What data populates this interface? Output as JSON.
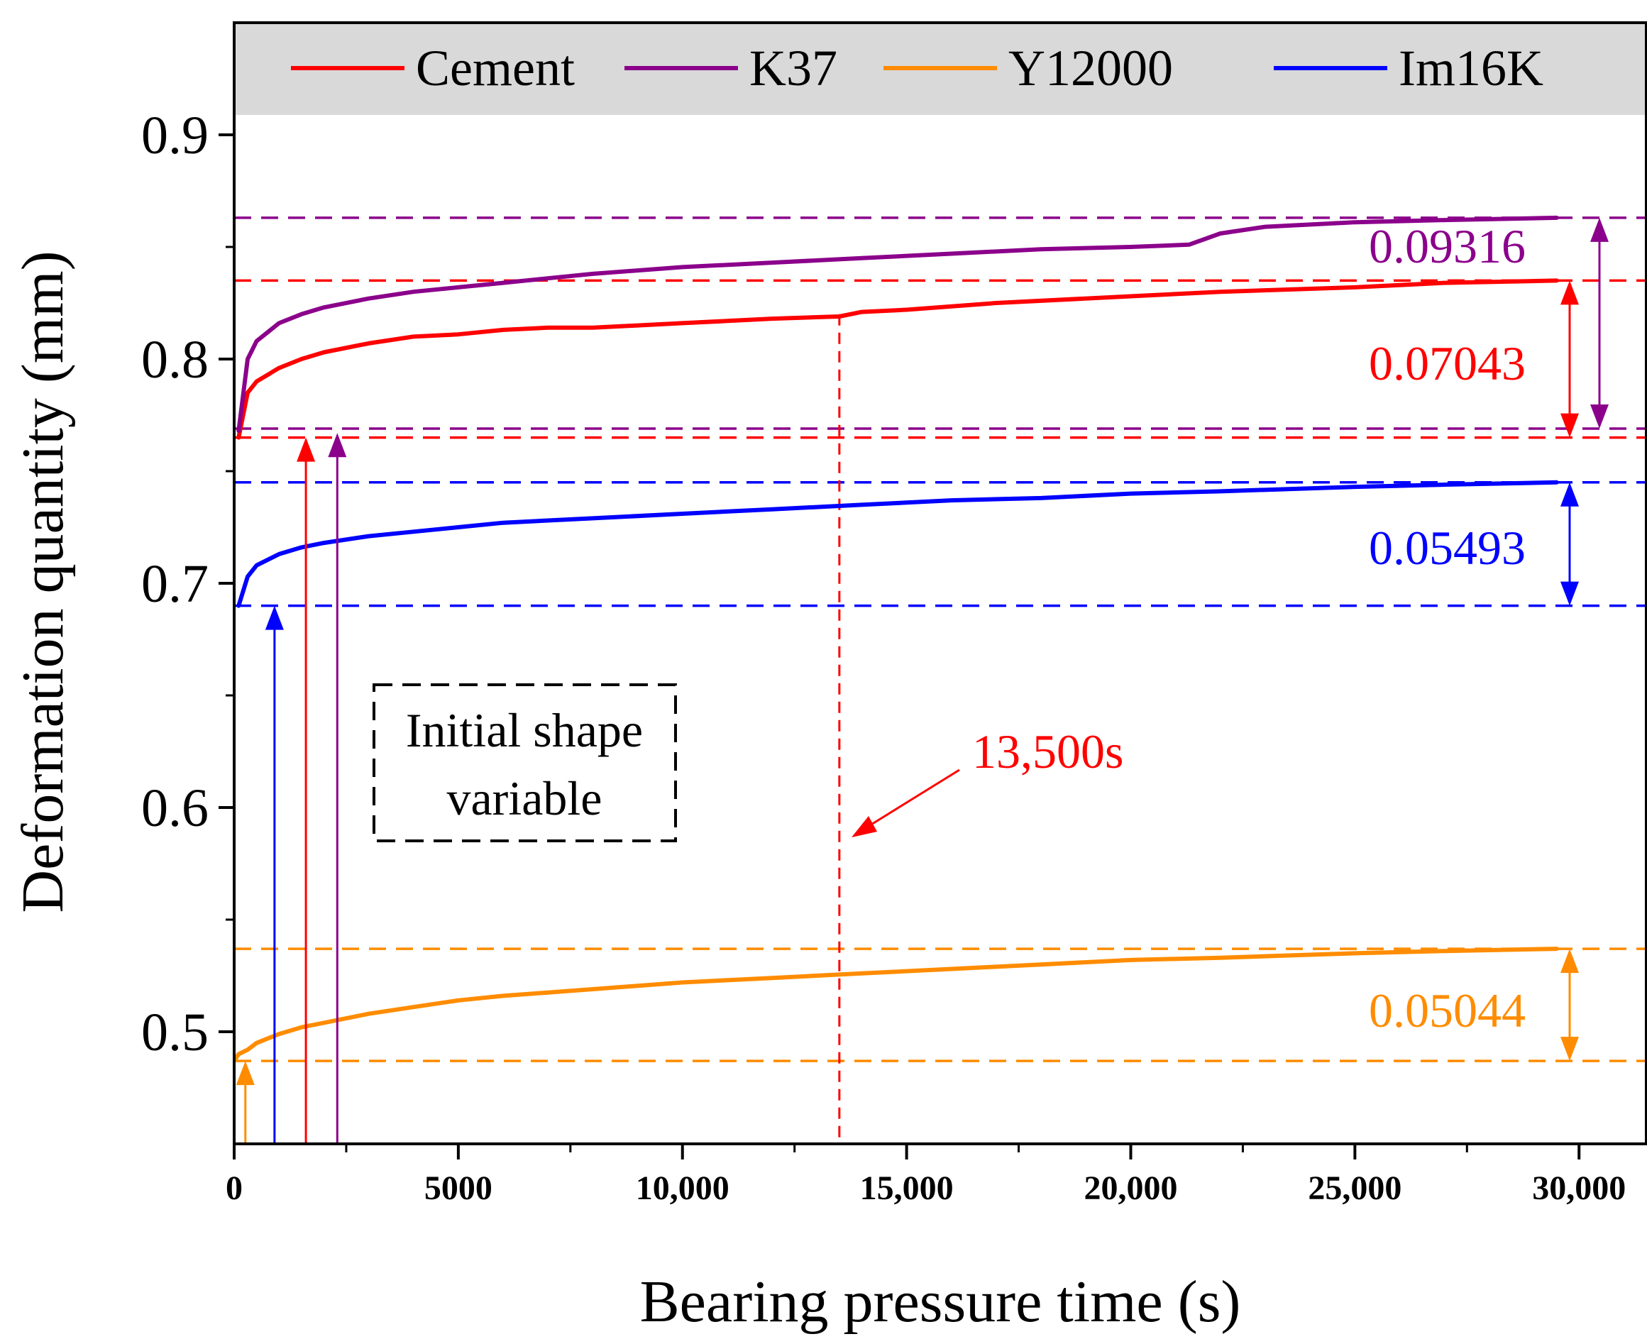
{
  "chart_data": {
    "type": "line",
    "title": "",
    "xlabel": "Bearing pressure time (s)",
    "ylabel": "Deformation quantity (mm)",
    "xlim": [
      0,
      31500
    ],
    "ylim": [
      0.45,
      0.95
    ],
    "x_ticks": [
      0,
      5000,
      10000,
      15000,
      20000,
      25000,
      30000
    ],
    "x_tick_labels": [
      "0",
      "5000",
      "10,000",
      "15,000",
      "20,000",
      "25,000",
      "30,000"
    ],
    "y_ticks": [
      0.5,
      0.6,
      0.7,
      0.8,
      0.9
    ],
    "y_tick_labels": [
      "0.5",
      "0.6",
      "0.7",
      "0.8",
      "0.9"
    ],
    "grid": false,
    "legend_position": "top",
    "series": [
      {
        "name": "Cement",
        "color": "#ff0000",
        "x": [
          100,
          300,
          500,
          1000,
          1500,
          2000,
          3000,
          4000,
          5000,
          6000,
          7000,
          8000,
          9000,
          10000,
          11000,
          12000,
          13500,
          14000,
          15000,
          17000,
          20000,
          22000,
          25000,
          27000,
          29500
        ],
        "y": [
          0.765,
          0.785,
          0.79,
          0.796,
          0.8,
          0.803,
          0.807,
          0.81,
          0.811,
          0.813,
          0.814,
          0.814,
          0.815,
          0.816,
          0.817,
          0.818,
          0.819,
          0.821,
          0.822,
          0.825,
          0.828,
          0.83,
          0.832,
          0.834,
          0.835
        ]
      },
      {
        "name": "K37",
        "color": "#8b008b",
        "x": [
          100,
          300,
          500,
          1000,
          1500,
          2000,
          3000,
          4000,
          5000,
          6000,
          7000,
          8000,
          10000,
          12000,
          14000,
          16000,
          18000,
          20000,
          21300,
          22000,
          23000,
          25000,
          27000,
          29500
        ],
        "y": [
          0.768,
          0.8,
          0.808,
          0.816,
          0.82,
          0.823,
          0.827,
          0.83,
          0.832,
          0.834,
          0.836,
          0.838,
          0.841,
          0.843,
          0.845,
          0.847,
          0.849,
          0.85,
          0.851,
          0.856,
          0.859,
          0.861,
          0.862,
          0.863
        ]
      },
      {
        "name": "Y12000",
        "color": "#ff8c00",
        "x": [
          0,
          100,
          300,
          500,
          1000,
          1500,
          2000,
          3000,
          4000,
          5000,
          6000,
          8000,
          10000,
          12000,
          14000,
          16000,
          18000,
          20000,
          22000,
          25000,
          27000,
          29500
        ],
        "y": [
          0.487,
          0.49,
          0.492,
          0.495,
          0.499,
          0.502,
          0.504,
          0.508,
          0.511,
          0.514,
          0.516,
          0.519,
          0.522,
          0.524,
          0.526,
          0.528,
          0.53,
          0.532,
          0.533,
          0.535,
          0.536,
          0.537
        ]
      },
      {
        "name": "Im16K",
        "color": "#0000ff",
        "x": [
          100,
          300,
          500,
          1000,
          1500,
          2000,
          3000,
          4000,
          5000,
          6000,
          8000,
          10000,
          12000,
          14000,
          16000,
          18000,
          20000,
          22000,
          25000,
          27000,
          29500
        ],
        "y": [
          0.69,
          0.703,
          0.708,
          0.713,
          0.716,
          0.718,
          0.721,
          0.723,
          0.725,
          0.727,
          0.729,
          0.731,
          0.733,
          0.735,
          0.737,
          0.738,
          0.74,
          0.741,
          0.743,
          0.744,
          0.745
        ]
      }
    ],
    "reference_lines": [
      {
        "series": "K37",
        "y": 0.863,
        "color": "#8b008b"
      },
      {
        "series": "K37",
        "y": 0.769,
        "color": "#8b008b"
      },
      {
        "series": "Cement",
        "y": 0.835,
        "color": "#ff0000"
      },
      {
        "series": "Cement",
        "y": 0.765,
        "color": "#ff0000"
      },
      {
        "series": "Im16K",
        "y": 0.745,
        "color": "#0000ff"
      },
      {
        "series": "Im16K",
        "y": 0.69,
        "color": "#0000ff"
      },
      {
        "series": "Y12000",
        "y": 0.537,
        "color": "#ff8c00"
      },
      {
        "series": "Y12000",
        "y": 0.487,
        "color": "#ff8c00"
      }
    ],
    "vertical_reference": {
      "x": 13500,
      "color": "#ff0000"
    },
    "initial_arrows": [
      {
        "series": "Y12000",
        "x": 250,
        "y_top": 0.487,
        "color": "#ff8c00"
      },
      {
        "series": "Im16K",
        "x": 900,
        "y_top": 0.69,
        "color": "#0000ff"
      },
      {
        "series": "Cement",
        "x": 1600,
        "y_top": 0.765,
        "color": "#ff0000"
      },
      {
        "series": "K37",
        "x": 2300,
        "y_top": 0.767,
        "color": "#8b008b"
      }
    ],
    "annotations": [
      {
        "series": "K37",
        "text": "0.09316",
        "color": "#8b008b"
      },
      {
        "series": "Cement",
        "text": "0.07043",
        "color": "#ff0000"
      },
      {
        "series": "Im16K",
        "text": "0.05493",
        "color": "#0000ff"
      },
      {
        "series": "Y12000",
        "text": "0.05044",
        "color": "#ff8c00"
      },
      {
        "series": "time",
        "text": "13,500s",
        "color": "#ff0000"
      }
    ],
    "box_label": {
      "line1": "Initial shape",
      "line2": "variable"
    }
  }
}
